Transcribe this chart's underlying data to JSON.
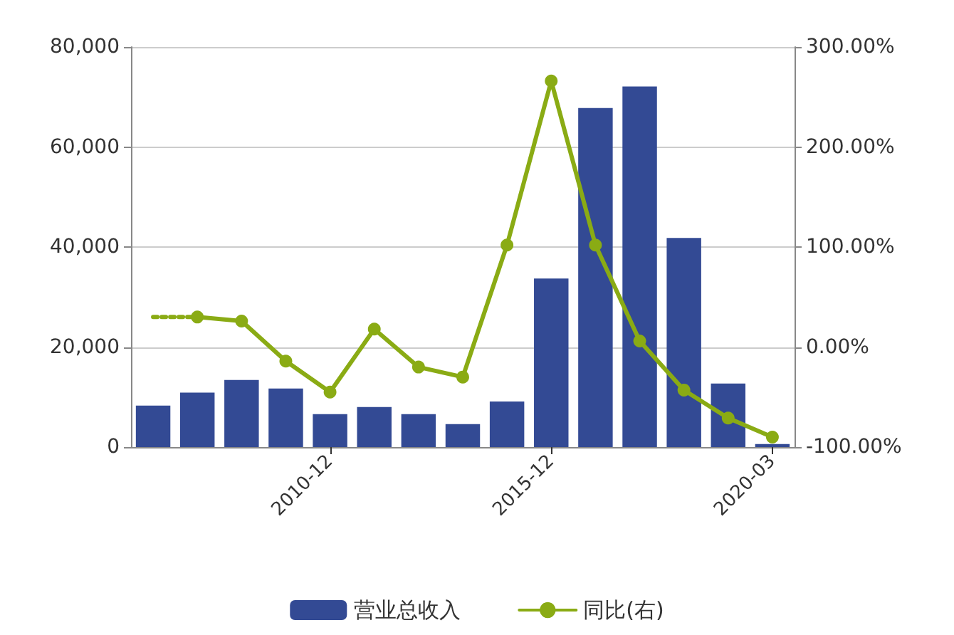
{
  "chart_data": {
    "type": "bar",
    "categories": [
      null,
      null,
      null,
      null,
      "2010-12",
      null,
      null,
      null,
      null,
      "2015-12",
      null,
      null,
      null,
      null,
      "2020-03"
    ],
    "series": [
      {
        "name": "营业总收入",
        "color": "#334a94",
        "values": [
          8300,
          10900,
          13400,
          11700,
          6600,
          8000,
          6600,
          4600,
          9100,
          33700,
          67800,
          72100,
          41800,
          12700,
          600
        ]
      },
      {
        "name": "同比(右)",
        "type": "line",
        "axis": "y2",
        "color": "#8aab14",
        "marker": "circle",
        "values": [
          null,
          30,
          26,
          -14,
          -45,
          18,
          -20,
          -30,
          102,
          266,
          102,
          6,
          -43,
          -71,
          -90
        ]
      },
      {
        "type": "line",
        "axis": "y2",
        "color": "#8aab14",
        "line_style": "dotted",
        "values": [
          30,
          30,
          null,
          null,
          null,
          null,
          null,
          null,
          null,
          null,
          null,
          null,
          null,
          null,
          null
        ]
      }
    ],
    "ylim": [
      0,
      80000
    ],
    "yticks": [
      {
        "value": 0,
        "label": "0"
      },
      {
        "value": 20000,
        "label": "20,000"
      },
      {
        "value": 40000,
        "label": "40,000"
      },
      {
        "value": 60000,
        "label": "60,000"
      },
      {
        "value": 80000,
        "label": "80,000"
      }
    ],
    "y2lim": [
      -100,
      300
    ],
    "y2ticks": [
      {
        "value": -100,
        "label": "-100.00%"
      },
      {
        "value": 0,
        "label": "0.00%"
      },
      {
        "value": 100,
        "label": "100.00%"
      },
      {
        "value": 200,
        "label": "200.00%"
      },
      {
        "value": 300,
        "label": "300.00%"
      }
    ],
    "grid": "y",
    "legend": "bottom"
  }
}
